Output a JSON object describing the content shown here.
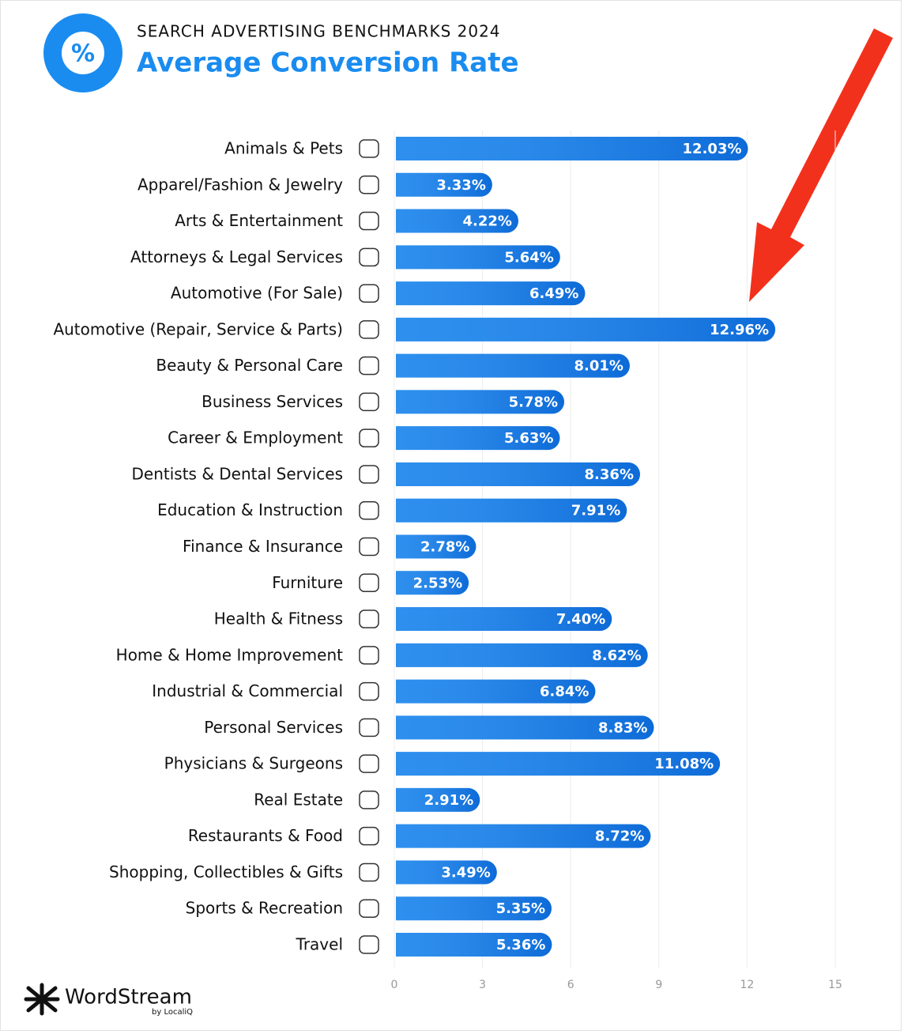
{
  "chart_data": {
    "type": "bar",
    "orientation": "horizontal",
    "badge_text": "%",
    "subtitle": "SEARCH ADVERTISING BENCHMARKS 2024",
    "title": "Average Conversion Rate",
    "categories": [
      "Animals & Pets",
      "Apparel/Fashion & Jewelry",
      "Arts & Entertainment",
      "Attorneys & Legal Services",
      "Automotive (For Sale)",
      "Automotive (Repair, Service & Parts)",
      "Beauty & Personal Care",
      "Business Services",
      "Career & Employment",
      "Dentists & Dental Services",
      "Education & Instruction",
      "Finance & Insurance",
      "Furniture",
      "Health & Fitness",
      "Home & Home Improvement",
      "Industrial & Commercial",
      "Personal Services",
      "Physicians & Surgeons",
      "Real Estate",
      "Restaurants & Food",
      "Shopping, Collectibles & Gifts",
      "Sports & Recreation",
      "Travel"
    ],
    "values": [
      12.03,
      3.33,
      4.22,
      5.64,
      6.49,
      12.96,
      8.01,
      5.78,
      5.63,
      8.36,
      7.91,
      2.78,
      2.53,
      7.4,
      8.62,
      6.84,
      8.83,
      11.08,
      2.91,
      8.72,
      3.49,
      5.35,
      5.36
    ],
    "value_labels": [
      "12.03%",
      "3.33%",
      "4.22%",
      "5.64%",
      "6.49%",
      "12.96%",
      "8.01%",
      "5.78%",
      "5.63%",
      "8.36%",
      "7.91%",
      "2.78%",
      "2.53%",
      "7.40%",
      "8.62%",
      "6.84%",
      "8.83%",
      "11.08%",
      "2.91%",
      "8.72%",
      "3.49%",
      "5.35%",
      "5.36%"
    ],
    "color": "#1180ec",
    "xlim": [
      0,
      15
    ],
    "xticks": [
      0,
      3,
      6,
      9,
      12,
      15
    ],
    "grid": true,
    "logo": {
      "name": "WordStream",
      "tagline": "by LocaliQ"
    }
  }
}
